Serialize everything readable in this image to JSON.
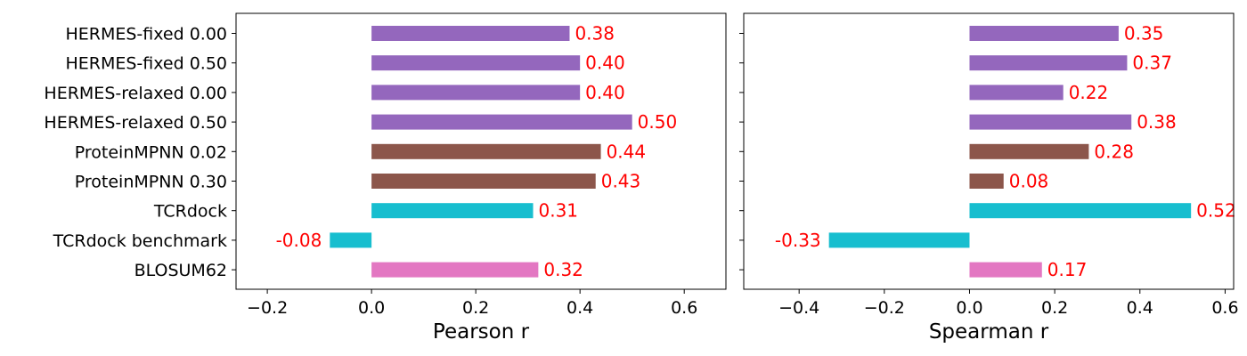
{
  "chart_data": [
    {
      "type": "bar",
      "orientation": "horizontal",
      "xlabel": "Pearson r",
      "xlim": [
        -0.26,
        0.68
      ],
      "xticks": [
        -0.2,
        0.0,
        0.2,
        0.4,
        0.6
      ],
      "xtick_labels": [
        "−0.2",
        "0.0",
        "0.2",
        "0.4",
        "0.6"
      ],
      "categories": [
        "HERMES-fixed 0.00",
        "HERMES-fixed 0.50",
        "HERMES-relaxed 0.00",
        "HERMES-relaxed 0.50",
        "ProteinMPNN 0.02",
        "ProteinMPNN 0.30",
        "TCRdock",
        "TCRdock benchmark",
        "BLOSUM62"
      ],
      "values": [
        0.38,
        0.4,
        0.4,
        0.5,
        0.44,
        0.43,
        0.31,
        -0.08,
        0.32
      ],
      "value_labels": [
        "0.38",
        "0.40",
        "0.40",
        "0.50",
        "0.44",
        "0.43",
        "0.31",
        "-0.08",
        "0.32"
      ],
      "colors": [
        "#9467bd",
        "#9467bd",
        "#9467bd",
        "#9467bd",
        "#8c564b",
        "#8c564b",
        "#17becf",
        "#17becf",
        "#e377c2"
      ],
      "label_color": "#ff0000",
      "grid": false
    },
    {
      "type": "bar",
      "orientation": "horizontal",
      "xlabel": "Spearman r",
      "xlim": [
        -0.53,
        0.62
      ],
      "xticks": [
        -0.4,
        -0.2,
        0.0,
        0.2,
        0.4,
        0.6
      ],
      "xtick_labels": [
        "−0.4",
        "−0.2",
        "0.0",
        "0.2",
        "0.4",
        "0.6"
      ],
      "categories": [
        "HERMES-fixed 0.00",
        "HERMES-fixed 0.50",
        "HERMES-relaxed 0.00",
        "HERMES-relaxed 0.50",
        "ProteinMPNN 0.02",
        "ProteinMPNN 0.30",
        "TCRdock",
        "TCRdock benchmark",
        "BLOSUM62"
      ],
      "values": [
        0.35,
        0.37,
        0.22,
        0.38,
        0.28,
        0.08,
        0.52,
        -0.33,
        0.17
      ],
      "value_labels": [
        "0.35",
        "0.37",
        "0.22",
        "0.38",
        "0.28",
        "0.08",
        "0.52",
        "-0.33",
        "0.17"
      ],
      "colors": [
        "#9467bd",
        "#9467bd",
        "#9467bd",
        "#9467bd",
        "#8c564b",
        "#8c564b",
        "#17becf",
        "#17becf",
        "#e377c2"
      ],
      "label_color": "#ff0000",
      "grid": false
    }
  ]
}
